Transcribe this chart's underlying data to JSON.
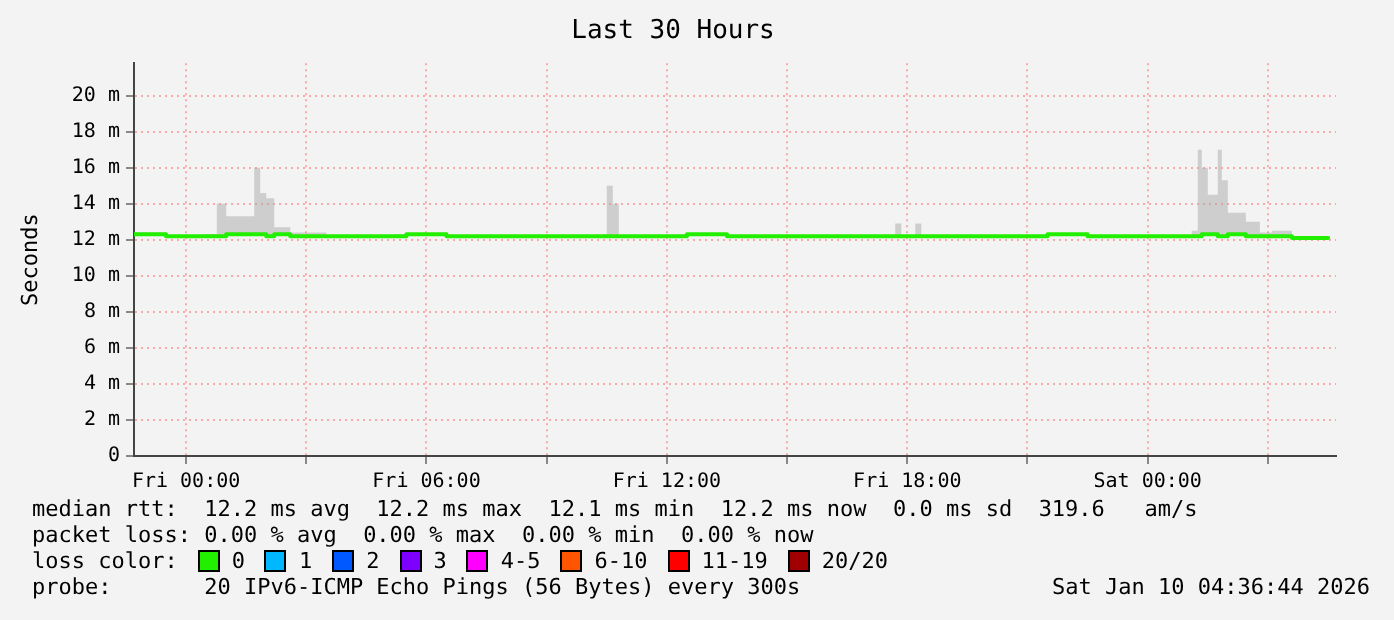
{
  "chart_data": {
    "type": "line",
    "title": "Last 30 Hours",
    "ylabel": "Seconds",
    "legend_title": "loss color:",
    "legend": "bottom",
    "grid": true,
    "marker": "none",
    "line_style": "solid",
    "xlim": [
      "2026-01-08T22:42",
      "2026-01-10T04:42"
    ],
    "xticks": [
      {
        "value": "2026-01-09T00:00",
        "label": "Fri 00:00"
      },
      {
        "value": "2026-01-09T03:00",
        "label": null
      },
      {
        "value": "2026-01-09T06:00",
        "label": "Fri 06:00"
      },
      {
        "value": "2026-01-09T09:00",
        "label": null
      },
      {
        "value": "2026-01-09T12:00",
        "label": "Fri 12:00"
      },
      {
        "value": "2026-01-09T15:00",
        "label": null
      },
      {
        "value": "2026-01-09T18:00",
        "label": "Fri 18:00"
      },
      {
        "value": "2026-01-09T21:00",
        "label": null
      },
      {
        "value": "2026-01-10T00:00",
        "label": "Sat 00:00"
      },
      {
        "value": "2026-01-10T03:00",
        "label": null
      }
    ],
    "ylim": [
      0,
      21.8
    ],
    "yticks": [
      0,
      {
        "value": 2,
        "label": "2 m"
      },
      {
        "value": 4,
        "label": "4 m"
      },
      {
        "value": 6,
        "label": "6 m"
      },
      {
        "value": 8,
        "label": "8 m"
      },
      {
        "value": 10,
        "label": "10 m"
      },
      {
        "value": 12,
        "label": "12 m"
      },
      {
        "value": 14,
        "label": "14 m"
      },
      {
        "value": 16,
        "label": "16 m"
      },
      {
        "value": 18,
        "label": "18 m"
      },
      {
        "value": 20,
        "label": "20 m"
      }
    ],
    "series": [
      {
        "name": "0",
        "color": "#22ee00",
        "x": [
          "2026-01-08T22:42",
          "2026-01-08T23:30",
          "2026-01-09T00:30",
          "2026-01-09T00:46",
          "2026-01-09T01:00",
          "2026-01-09T01:18",
          "2026-01-09T01:42",
          "2026-01-09T01:51",
          "2026-01-09T02:00",
          "2026-01-09T02:12",
          "2026-01-09T02:36",
          "2026-01-09T03:30",
          "2026-01-09T04:30",
          "2026-01-09T05:30",
          "2026-01-09T06:30",
          "2026-01-09T07:30",
          "2026-01-09T08:30",
          "2026-01-09T09:30",
          "2026-01-09T10:24",
          "2026-01-09T10:30",
          "2026-01-09T10:39",
          "2026-01-09T10:48",
          "2026-01-09T11:30",
          "2026-01-09T12:30",
          "2026-01-09T13:30",
          "2026-01-09T14:30",
          "2026-01-09T15:30",
          "2026-01-09T16:30",
          "2026-01-09T17:30",
          "2026-01-09T17:42",
          "2026-01-09T17:51",
          "2026-01-09T18:12",
          "2026-01-09T18:21",
          "2026-01-09T19:30",
          "2026-01-09T20:30",
          "2026-01-09T21:30",
          "2026-01-09T22:30",
          "2026-01-09T23:30",
          "2026-01-10T00:30",
          "2026-01-10T01:06",
          "2026-01-10T01:15",
          "2026-01-10T01:21",
          "2026-01-10T01:30",
          "2026-01-10T01:45",
          "2026-01-10T01:51",
          "2026-01-10T02:00",
          "2026-01-10T02:27",
          "2026-01-10T02:48",
          "2026-01-10T03:06",
          "2026-01-10T03:36",
          "2026-01-10T04:30"
        ],
        "values": [
          12.3,
          12.2,
          12.2,
          12.2,
          12.3,
          12.3,
          12.3,
          12.3,
          12.2,
          12.3,
          12.2,
          12.2,
          12.2,
          12.3,
          12.2,
          12.2,
          12.2,
          12.2,
          12.2,
          12.2,
          12.2,
          12.2,
          12.2,
          12.3,
          12.2,
          12.2,
          12.2,
          12.2,
          12.2,
          12.2,
          12.2,
          12.2,
          12.2,
          12.2,
          12.2,
          12.3,
          12.2,
          12.2,
          12.2,
          12.2,
          12.2,
          12.3,
          12.3,
          12.2,
          12.2,
          12.3,
          12.2,
          12.2,
          12.2,
          12.1,
          12.2
        ],
        "lower": [
          12.3,
          12.2,
          12.2,
          12.2,
          12.3,
          12.3,
          12.3,
          12.3,
          12.2,
          12.3,
          12.2,
          12.2,
          12.2,
          12.3,
          12.2,
          12.2,
          12.2,
          12.2,
          12.2,
          12.2,
          12.2,
          12.2,
          12.2,
          12.3,
          12.2,
          12.2,
          12.2,
          12.2,
          12.2,
          12.2,
          12.2,
          12.2,
          12.2,
          12.2,
          12.2,
          12.3,
          12.2,
          12.2,
          12.2,
          12.2,
          12.2,
          12.3,
          12.3,
          12.2,
          12.2,
          12.3,
          12.2,
          12.2,
          12.2,
          12.1,
          12.2
        ],
        "upper": [
          12.4,
          12.2,
          12.3,
          14.0,
          13.3,
          13.3,
          16.0,
          14.6,
          14.3,
          12.7,
          12.4,
          12.2,
          12.2,
          12.3,
          12.2,
          12.2,
          12.2,
          12.2,
          12.3,
          15.0,
          14.0,
          12.2,
          12.2,
          12.3,
          12.2,
          12.2,
          12.2,
          12.2,
          12.2,
          12.9,
          12.2,
          12.9,
          12.2,
          12.2,
          12.2,
          12.3,
          12.2,
          12.2,
          12.2,
          12.5,
          17.0,
          16.0,
          14.5,
          17.0,
          15.3,
          13.5,
          13.0,
          12.4,
          12.5,
          12.1,
          12.2
        ]
      },
      {
        "name": "1",
        "color": "#00b8ff"
      },
      {
        "name": "2",
        "color": "#0059ff"
      },
      {
        "name": "3",
        "color": "#7e00ff"
      },
      {
        "name": "4-5",
        "color": "#ff00ff"
      },
      {
        "name": "6-10",
        "color": "#ff5500"
      },
      {
        "name": "11-19",
        "color": "#ff0000"
      },
      {
        "name": "20/20",
        "color": "#a10000"
      }
    ],
    "annotations": [
      "median rtt:  12.2 ms avg  12.2 ms max  12.1 ms min  12.2 ms now  0.0 ms sd  319.6   am/s",
      "packet loss: 0.00 % avg  0.00 % max  0.00 % min  0.00 % now",
      "probe:       20 IPv6-ICMP Echo Pings (56 Bytes) every 300s",
      "Sat Jan 10 04:36:44 2026"
    ]
  }
}
